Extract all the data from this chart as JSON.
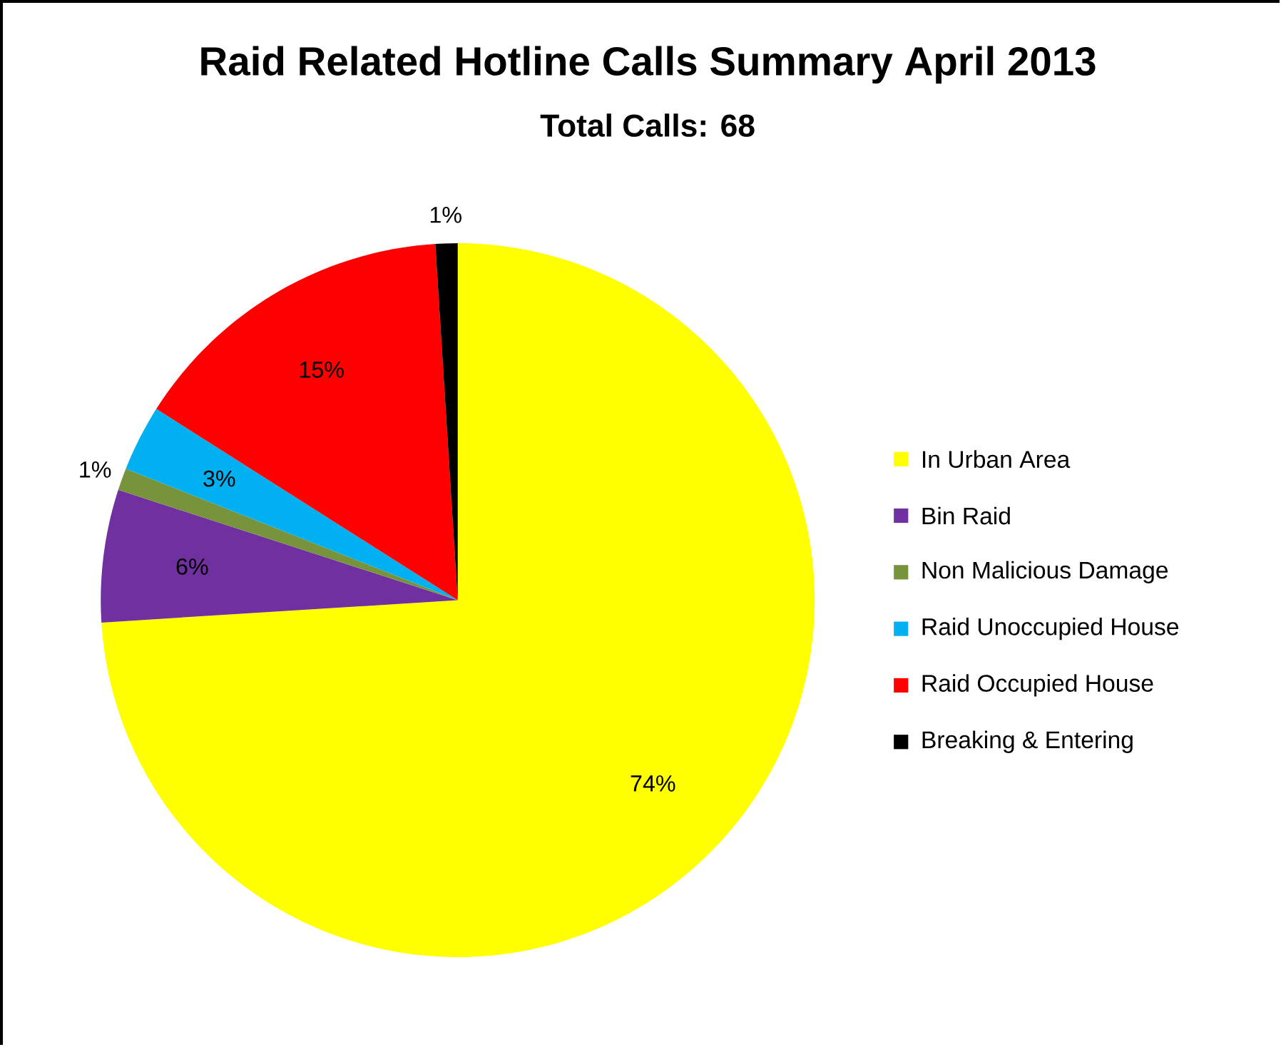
{
  "chart_data": {
    "type": "pie",
    "title": "Raid Related Hotline Calls Summary April 2013",
    "subtitle": "Total Calls: 68",
    "categories": [
      "In Urban Area",
      "Bin Raid",
      "Non Malicious Damage",
      "Raid Unoccupied House",
      "Raid Occupied House",
      "Breaking & Entering"
    ],
    "values": [
      74,
      6,
      1,
      3,
      15,
      1
    ],
    "value_labels": [
      "74%",
      "6%",
      "1%",
      "3%",
      "15%",
      "1%"
    ],
    "colors": [
      "#ffff00",
      "#7030a0",
      "#77933c",
      "#00b0f0",
      "#ff0000",
      "#000000"
    ],
    "legend": "right"
  }
}
